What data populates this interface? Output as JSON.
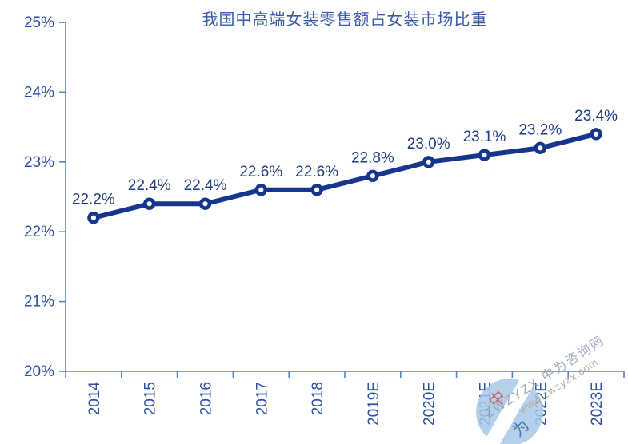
{
  "chart_data": {
    "type": "line",
    "title": "我国中高端女装零售额占女装市场比重",
    "categories": [
      "2014",
      "2015",
      "2016",
      "2017",
      "2018",
      "2019E",
      "2020E",
      "2021E",
      "2022E",
      "2023E"
    ],
    "values": [
      22.2,
      22.4,
      22.4,
      22.6,
      22.6,
      22.8,
      23.0,
      23.1,
      23.2,
      23.4
    ],
    "data_labels": [
      "22.2%",
      "22.4%",
      "22.4%",
      "22.6%",
      "22.6%",
      "22.8%",
      "23.0%",
      "23.1%",
      "23.2%",
      "23.4%"
    ],
    "ylim": [
      20,
      25
    ],
    "ytick_step": 1,
    "ytick_labels": [
      "20%",
      "21%",
      "22%",
      "23%",
      "24%",
      "25%"
    ],
    "xlabel": "",
    "ylabel": "",
    "grid": false,
    "legend": "none",
    "x_axis_between_categories": true,
    "x_tick_label_rotation_deg": -90
  },
  "colors": {
    "line": "#16368E",
    "marker_fill": "#FFFFFF",
    "marker_stroke": "#16368E",
    "data_label": "#203C85",
    "tick_label": "#2B4EA6",
    "title": "#3A5BA9",
    "axis": "#5B82C9"
  },
  "watermark": {
    "line1": "ZWZYZX 中为咨询网",
    "line2": "www.zwzyzx.com",
    "logo_char_top": "中",
    "logo_char_bottom": "为"
  }
}
